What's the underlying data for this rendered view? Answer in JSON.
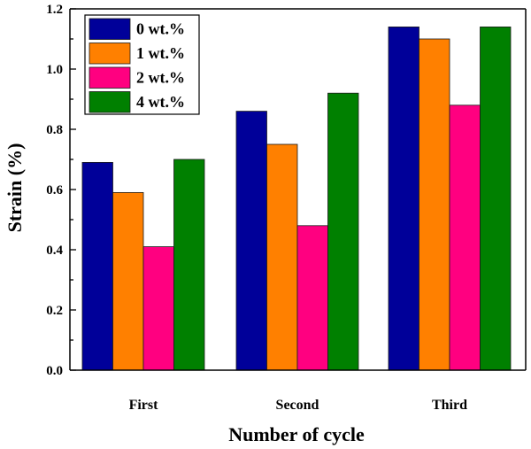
{
  "chart_data": {
    "type": "bar",
    "xlabel": "Number of cycle",
    "ylabel": "Strain (%)",
    "categories": [
      "First",
      "Second",
      "Third"
    ],
    "ylim": [
      0,
      1.2
    ],
    "yticks": [
      "0.0",
      "0.2",
      "0.4",
      "0.6",
      "0.8",
      "1.0",
      "1.2"
    ],
    "legend_position": "top-left",
    "grid": false,
    "series": [
      {
        "name": "0 wt.%",
        "color": "#000099",
        "values": [
          0.69,
          0.86,
          1.14
        ]
      },
      {
        "name": "1 wt.%",
        "color": "#ff8000",
        "values": [
          0.59,
          0.75,
          1.1
        ]
      },
      {
        "name": "2 wt.%",
        "color": "#ff0080",
        "values": [
          0.41,
          0.48,
          0.88
        ]
      },
      {
        "name": "4 wt.%",
        "color": "#008000",
        "values": [
          0.7,
          0.92,
          1.14
        ]
      }
    ]
  }
}
